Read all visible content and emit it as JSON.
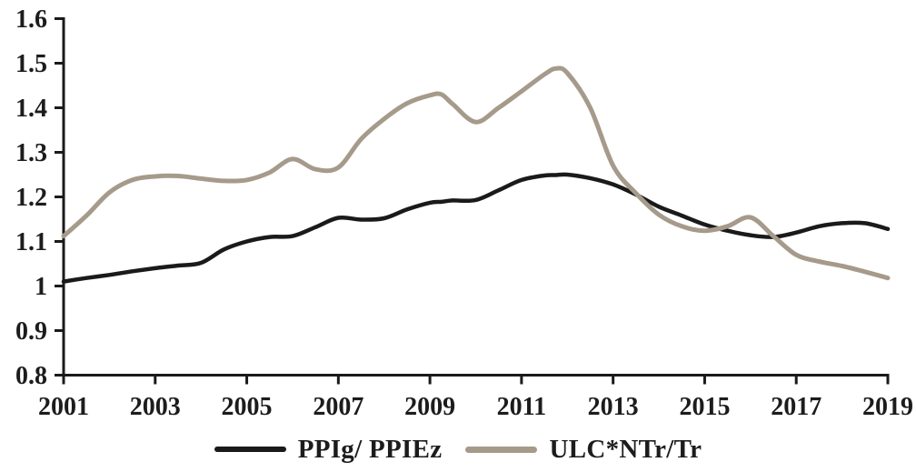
{
  "figure": {
    "background": "#ffffff",
    "axis_color": "#1a1a1a",
    "text_color": "#1c1c1c"
  },
  "chart_data": {
    "type": "line",
    "title": "",
    "xlabel": "",
    "ylabel": "",
    "grid": false,
    "legend_position": "bottom-center",
    "xlim": [
      2001,
      2019
    ],
    "ylim": [
      0.8,
      1.6
    ],
    "x_ticks": [
      {
        "value": 2001,
        "label": "2001"
      },
      {
        "value": 2003,
        "label": "2003"
      },
      {
        "value": 2005,
        "label": "2005"
      },
      {
        "value": 2007,
        "label": "2007"
      },
      {
        "value": 2009,
        "label": "2009"
      },
      {
        "value": 2011,
        "label": "2011"
      },
      {
        "value": 2013,
        "label": "2013"
      },
      {
        "value": 2015,
        "label": "2015"
      },
      {
        "value": 2017,
        "label": "2017"
      },
      {
        "value": 2019,
        "label": "2019"
      }
    ],
    "y_ticks": [
      {
        "value": 0.8,
        "label": "0.8"
      },
      {
        "value": 0.9,
        "label": "0.9"
      },
      {
        "value": 1.0,
        "label": "1"
      },
      {
        "value": 1.1,
        "label": "1.1"
      },
      {
        "value": 1.2,
        "label": "1.2"
      },
      {
        "value": 1.3,
        "label": "1.3"
      },
      {
        "value": 1.4,
        "label": "1.4"
      },
      {
        "value": 1.5,
        "label": "1.5"
      },
      {
        "value": 1.6,
        "label": "1.6"
      }
    ],
    "x": [
      2001,
      2001.5,
      2002,
      2002.5,
      2003,
      2003.5,
      2004,
      2004.5,
      2005,
      2005.5,
      2006,
      2006.5,
      2007,
      2007.5,
      2008,
      2008.5,
      2009,
      2009.25,
      2009.5,
      2010,
      2010.5,
      2011,
      2011.5,
      2011.75,
      2012,
      2012.5,
      2013,
      2013.5,
      2014,
      2014.5,
      2015,
      2015.5,
      2016,
      2016.5,
      2017,
      2017.5,
      2018,
      2018.5,
      2019
    ],
    "series": [
      {
        "name": "PPIg/ PPIEz",
        "color": "#1a1a1a",
        "line_width": 4.5,
        "values": [
          1.01,
          1.018,
          1.025,
          1.033,
          1.04,
          1.046,
          1.052,
          1.082,
          1.1,
          1.11,
          1.112,
          1.132,
          1.153,
          1.149,
          1.152,
          1.172,
          1.187,
          1.189,
          1.192,
          1.193,
          1.215,
          1.238,
          1.248,
          1.249,
          1.25,
          1.242,
          1.228,
          1.205,
          1.178,
          1.158,
          1.138,
          1.124,
          1.114,
          1.11,
          1.12,
          1.134,
          1.141,
          1.141,
          1.128
        ]
      },
      {
        "name": "ULC*NTr/Tr",
        "color": "#a69a8b",
        "line_width": 5,
        "values": [
          1.112,
          1.158,
          1.21,
          1.238,
          1.246,
          1.247,
          1.241,
          1.236,
          1.238,
          1.255,
          1.285,
          1.262,
          1.266,
          1.33,
          1.375,
          1.41,
          1.428,
          1.43,
          1.408,
          1.368,
          1.4,
          1.437,
          1.475,
          1.488,
          1.478,
          1.4,
          1.27,
          1.208,
          1.16,
          1.134,
          1.124,
          1.134,
          1.154,
          1.112,
          1.07,
          1.055,
          1.045,
          1.032,
          1.018
        ]
      }
    ]
  }
}
